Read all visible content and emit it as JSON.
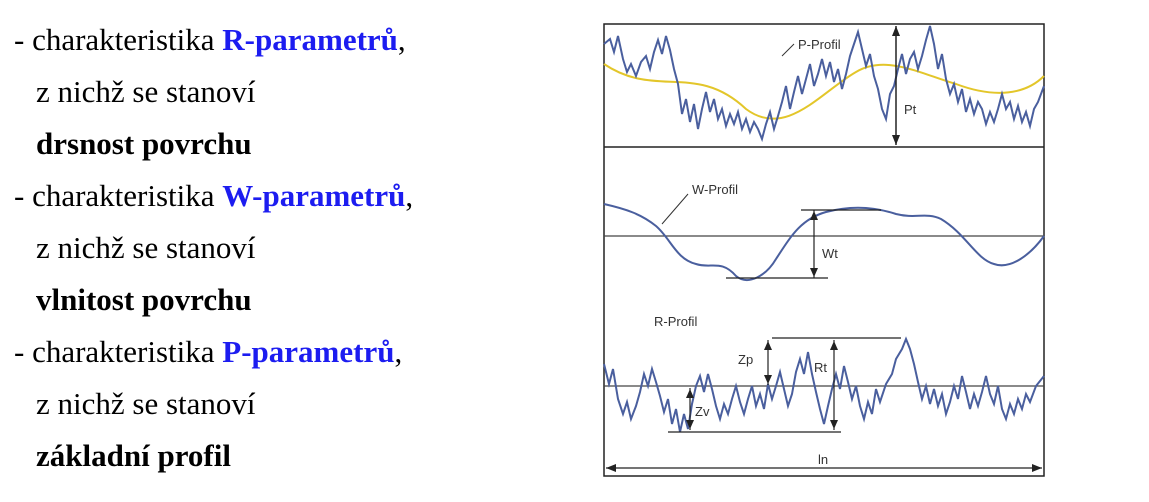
{
  "items": [
    {
      "prefix": "- charakteristika ",
      "keyword": "R-parametrů",
      "suffix": ",",
      "line2": "z nichž se stanoví",
      "result": "drsnost povrchu"
    },
    {
      "prefix": "- charakteristika ",
      "keyword": "W-parametrů",
      "suffix": ",",
      "line2": "z nichž se stanoví",
      "result": "vlnitost povrchu"
    },
    {
      "prefix": "- charakteristika ",
      "keyword": "P-parametrů",
      "suffix": ",",
      "line2": "z nichž se stanoví",
      "result": "základní profil"
    }
  ],
  "diagram": {
    "p_label": "P-Profil",
    "pt_label": "Pt",
    "w_label": "W-Profil",
    "wt_label": "Wt",
    "r_label": "R-Profil",
    "zp_label": "Zp",
    "rt_label": "Rt",
    "zv_label": "Zv",
    "ln_label": "ln"
  },
  "colors": {
    "keyword": "#1c1cf0",
    "profile": "#4a5f9e",
    "mean_line": "#e3c62a"
  }
}
